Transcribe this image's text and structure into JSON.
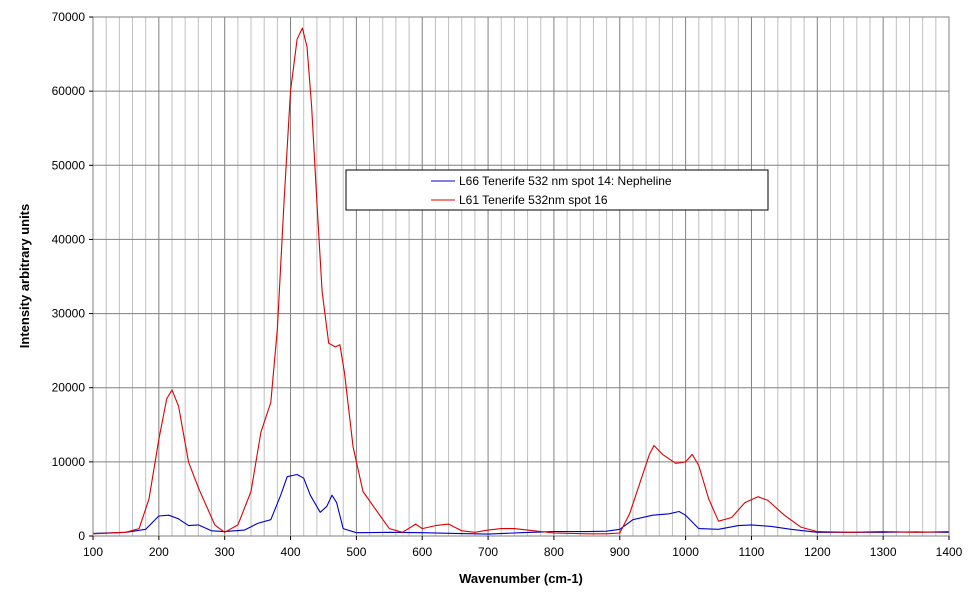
{
  "chart_data": {
    "type": "line",
    "title": "",
    "xlabel": "Wavenumber (cm-1)",
    "ylabel": "Intensity arbitrary units",
    "xlim": [
      100,
      1400
    ],
    "ylim": [
      0,
      70000
    ],
    "x_ticks": [
      100,
      200,
      300,
      400,
      500,
      600,
      700,
      800,
      900,
      1000,
      1100,
      1200,
      1300,
      1400
    ],
    "y_ticks": [
      0,
      10000,
      20000,
      30000,
      40000,
      50000,
      60000,
      70000
    ],
    "x_minor_step": 20,
    "grid": true,
    "legend_position": "center",
    "series": [
      {
        "name": "L66 Tenerife 532 nm spot 14: Nepheline",
        "color": "#0000cc",
        "points": [
          [
            100,
            350
          ],
          [
            150,
            500
          ],
          [
            180,
            900
          ],
          [
            200,
            2700
          ],
          [
            215,
            2800
          ],
          [
            230,
            2300
          ],
          [
            245,
            1400
          ],
          [
            260,
            1500
          ],
          [
            280,
            700
          ],
          [
            300,
            600
          ],
          [
            330,
            800
          ],
          [
            350,
            1700
          ],
          [
            370,
            2200
          ],
          [
            385,
            5500
          ],
          [
            395,
            8000
          ],
          [
            410,
            8300
          ],
          [
            420,
            7800
          ],
          [
            430,
            5500
          ],
          [
            445,
            3200
          ],
          [
            455,
            4000
          ],
          [
            463,
            5500
          ],
          [
            470,
            4500
          ],
          [
            480,
            1000
          ],
          [
            500,
            450
          ],
          [
            550,
            500
          ],
          [
            600,
            450
          ],
          [
            650,
            350
          ],
          [
            700,
            250
          ],
          [
            750,
            450
          ],
          [
            800,
            600
          ],
          [
            850,
            600
          ],
          [
            880,
            650
          ],
          [
            900,
            900
          ],
          [
            920,
            2200
          ],
          [
            950,
            2800
          ],
          [
            975,
            3000
          ],
          [
            990,
            3300
          ],
          [
            1000,
            2800
          ],
          [
            1020,
            1000
          ],
          [
            1050,
            900
          ],
          [
            1080,
            1400
          ],
          [
            1100,
            1500
          ],
          [
            1130,
            1300
          ],
          [
            1160,
            900
          ],
          [
            1200,
            500
          ],
          [
            1250,
            500
          ],
          [
            1300,
            500
          ],
          [
            1350,
            550
          ],
          [
            1400,
            500
          ]
        ]
      },
      {
        "name": "L61 Tenerife 532nm spot 16",
        "color": "#dd0000",
        "points": [
          [
            100,
            300
          ],
          [
            150,
            500
          ],
          [
            170,
            1000
          ],
          [
            185,
            5000
          ],
          [
            200,
            13000
          ],
          [
            212,
            18500
          ],
          [
            220,
            19700
          ],
          [
            230,
            17500
          ],
          [
            245,
            10000
          ],
          [
            260,
            6500
          ],
          [
            270,
            4500
          ],
          [
            285,
            1500
          ],
          [
            300,
            500
          ],
          [
            320,
            1500
          ],
          [
            340,
            6000
          ],
          [
            355,
            14000
          ],
          [
            370,
            18000
          ],
          [
            380,
            28000
          ],
          [
            390,
            45000
          ],
          [
            400,
            60000
          ],
          [
            410,
            67000
          ],
          [
            418,
            68500
          ],
          [
            425,
            66000
          ],
          [
            432,
            58000
          ],
          [
            440,
            45000
          ],
          [
            448,
            33000
          ],
          [
            458,
            26000
          ],
          [
            468,
            25500
          ],
          [
            475,
            25800
          ],
          [
            482,
            22000
          ],
          [
            495,
            12000
          ],
          [
            510,
            6000
          ],
          [
            530,
            3500
          ],
          [
            550,
            1000
          ],
          [
            570,
            500
          ],
          [
            590,
            1600
          ],
          [
            600,
            1000
          ],
          [
            620,
            1400
          ],
          [
            640,
            1600
          ],
          [
            660,
            700
          ],
          [
            680,
            500
          ],
          [
            700,
            800
          ],
          [
            720,
            1000
          ],
          [
            740,
            1000
          ],
          [
            760,
            800
          ],
          [
            800,
            400
          ],
          [
            850,
            300
          ],
          [
            880,
            300
          ],
          [
            900,
            400
          ],
          [
            915,
            3000
          ],
          [
            930,
            7000
          ],
          [
            945,
            11000
          ],
          [
            952,
            12200
          ],
          [
            965,
            11000
          ],
          [
            985,
            9800
          ],
          [
            1000,
            10000
          ],
          [
            1010,
            11000
          ],
          [
            1020,
            9500
          ],
          [
            1035,
            5000
          ],
          [
            1050,
            2000
          ],
          [
            1070,
            2500
          ],
          [
            1090,
            4500
          ],
          [
            1110,
            5300
          ],
          [
            1125,
            4800
          ],
          [
            1150,
            2800
          ],
          [
            1175,
            1200
          ],
          [
            1200,
            600
          ],
          [
            1250,
            500
          ],
          [
            1300,
            600
          ],
          [
            1350,
            500
          ],
          [
            1400,
            600
          ]
        ]
      }
    ]
  }
}
